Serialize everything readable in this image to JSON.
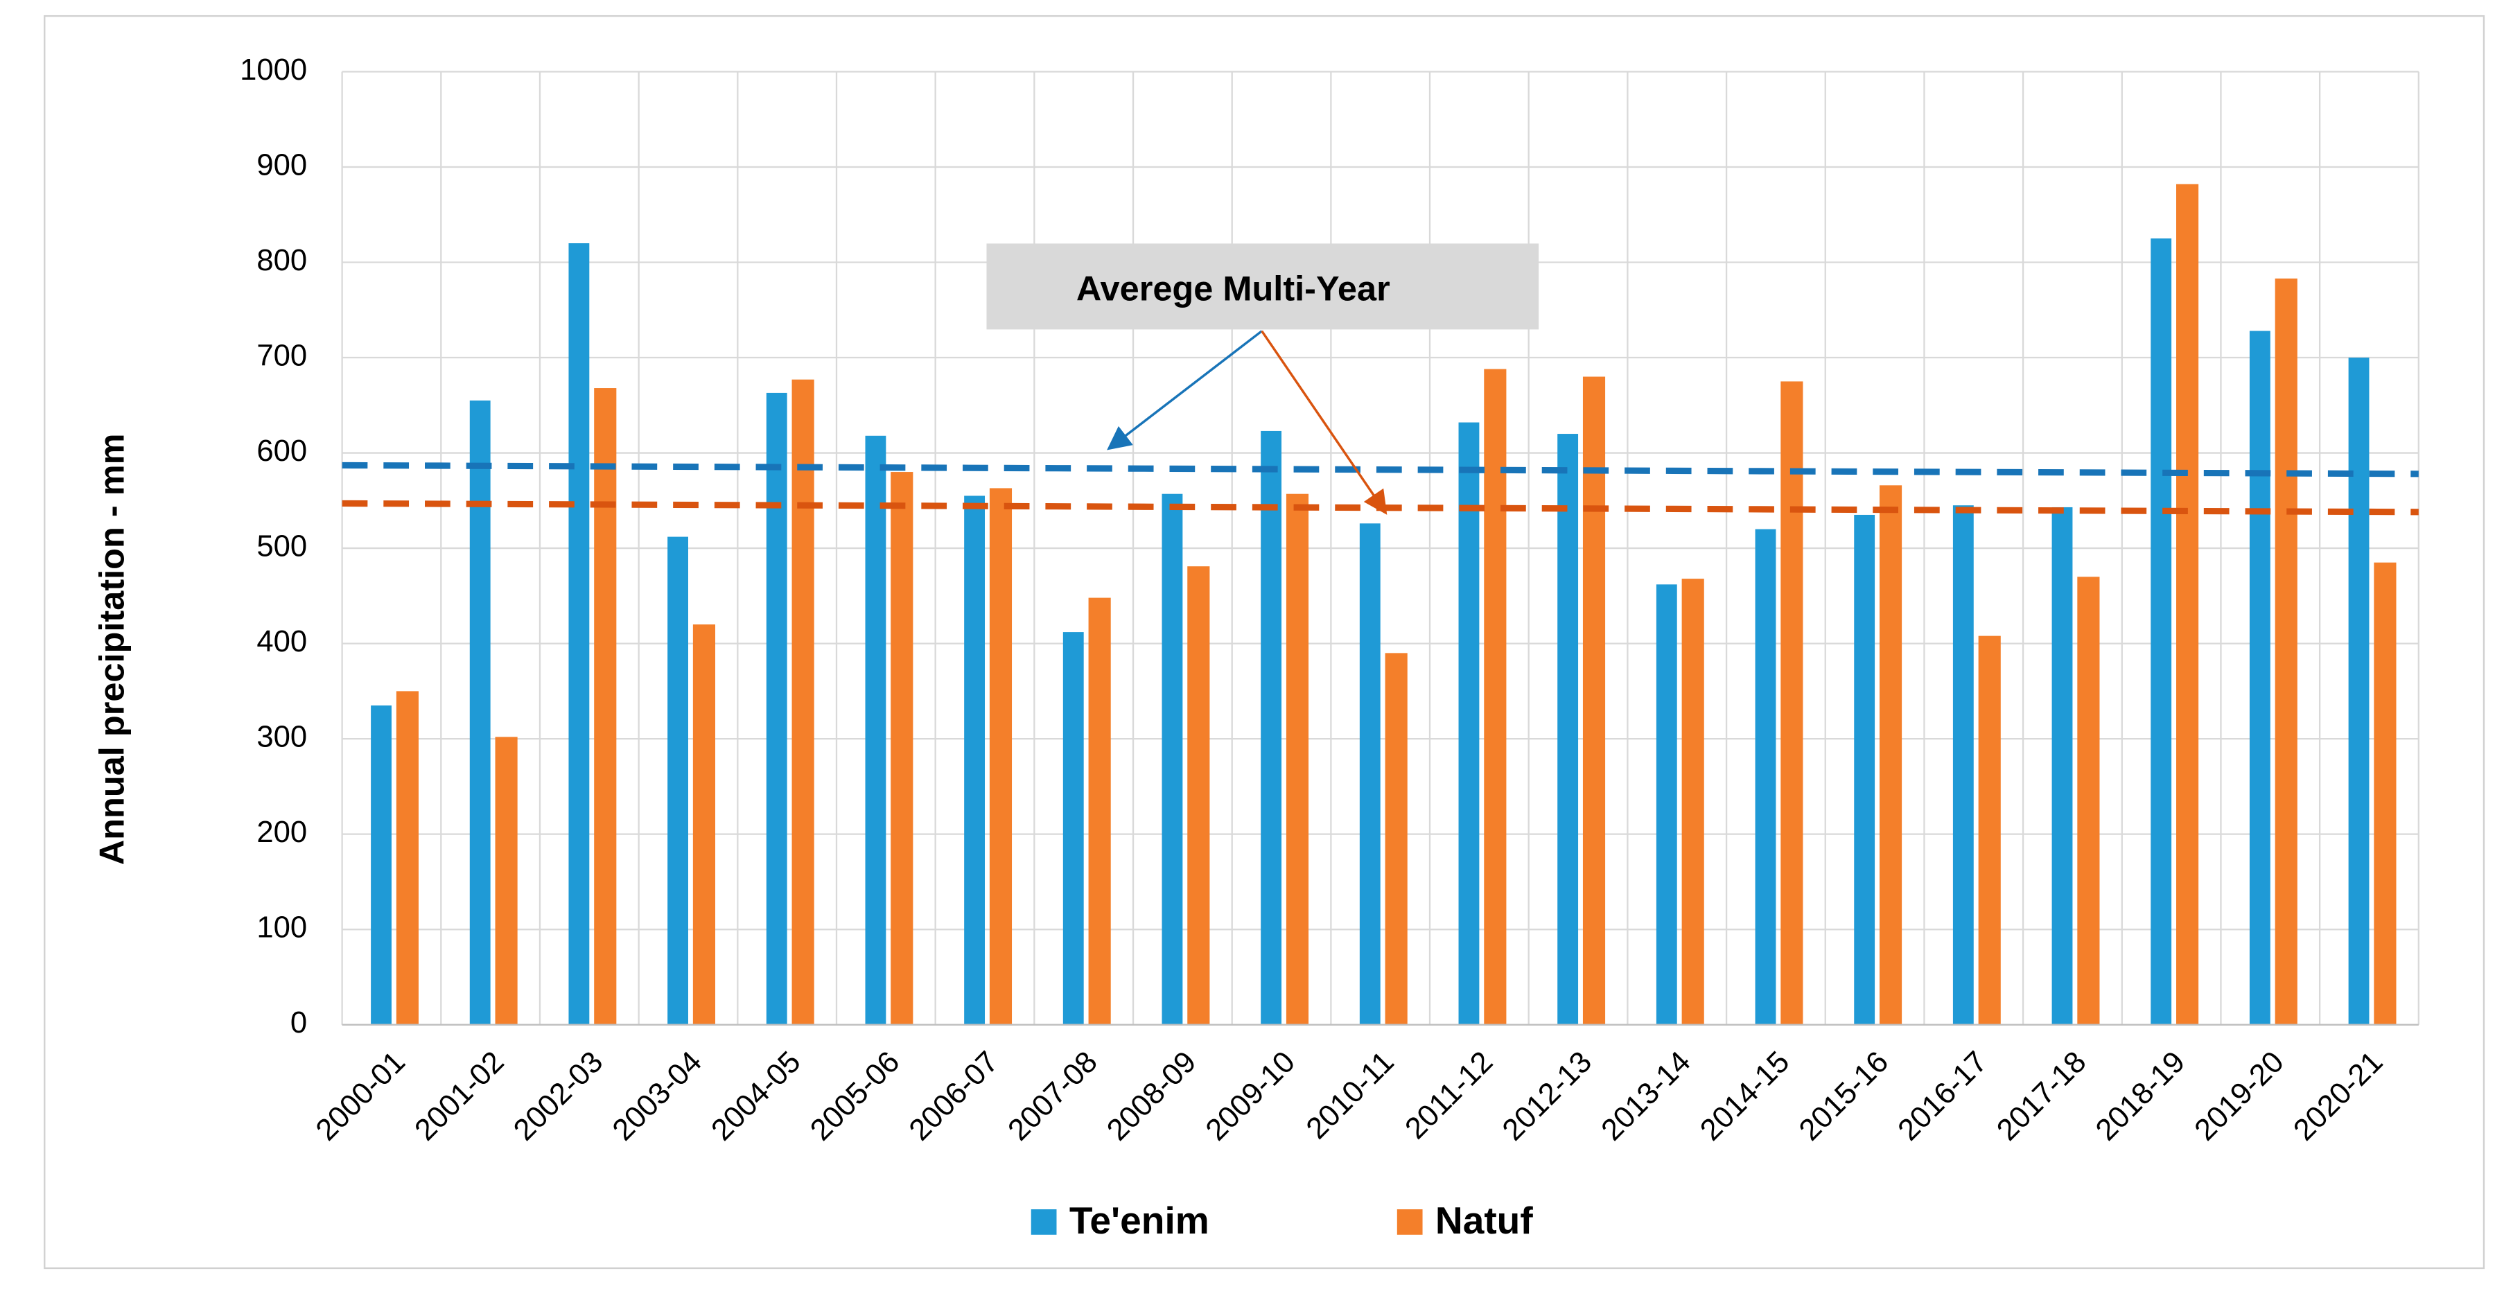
{
  "chart_data": {
    "type": "bar",
    "y_label": "Annual precipitation - mm",
    "categories": [
      "2000-01",
      "2001-02",
      "2002-03",
      "2003-04",
      "2004-05",
      "2005-06",
      "2006-07",
      "2007-08",
      "2008-09",
      "2009-10",
      "2010-11",
      "2011-12",
      "2012-13",
      "2013-14",
      "2014-15",
      "2015-16",
      "2016-17",
      "2017-18",
      "2018-19",
      "2019-20",
      "2020-21"
    ],
    "series": [
      {
        "name": "Te'enim",
        "color": "#1f9ad6",
        "values": [
          335,
          655,
          820,
          512,
          663,
          618,
          555,
          412,
          557,
          623,
          526,
          632,
          620,
          462,
          520,
          535,
          545,
          543,
          825,
          728,
          700
        ]
      },
      {
        "name": "Natuf",
        "color": "#f47f2a",
        "values": [
          350,
          302,
          668,
          420,
          677,
          580,
          563,
          448,
          481,
          557,
          390,
          688,
          680,
          468,
          675,
          566,
          408,
          470,
          882,
          783,
          485
        ]
      }
    ],
    "average_lines": [
      {
        "color": "#1874b8",
        "values": [
          587,
          578
        ]
      },
      {
        "color": "#d9540f",
        "values": [
          547,
          538
        ]
      }
    ],
    "annotation": "Averege Multi-Year",
    "ylim": [
      0,
      1000
    ],
    "yticks": [
      0,
      100,
      200,
      300,
      400,
      500,
      600,
      700,
      800,
      900,
      1000
    ],
    "grid": true
  }
}
